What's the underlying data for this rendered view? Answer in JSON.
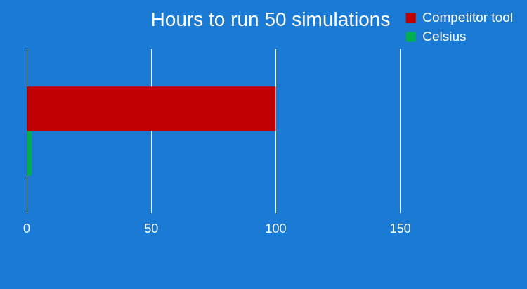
{
  "chart_data": {
    "type": "bar",
    "title": "Hours to run 50 simulations",
    "orientation": "horizontal",
    "categories": [
      null
    ],
    "series": [
      {
        "name": "Competitor tool",
        "color": "#c00000",
        "values": [
          100
        ]
      },
      {
        "name": "Celsius",
        "color": "#00b050",
        "values": [
          2
        ]
      }
    ],
    "xlim": [
      0,
      150
    ],
    "xticks": [
      0,
      50,
      100,
      150
    ],
    "grid": true,
    "legend": "right",
    "tick_labels": "x"
  }
}
